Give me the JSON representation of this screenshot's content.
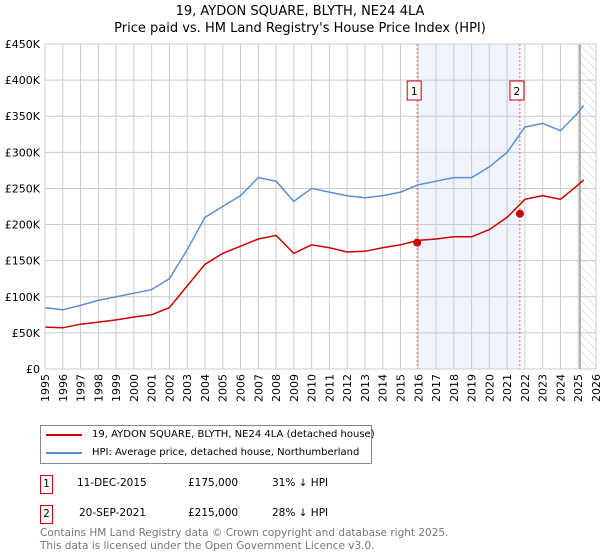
{
  "title_line1": "19, AYDON SQUARE, BLYTH, NE24 4LA",
  "title_line2": "Price paid vs. HM Land Registry's House Price Index (HPI)",
  "chart_data": {
    "type": "line",
    "ylim": [
      0,
      450000
    ],
    "xlim": [
      1995,
      2026
    ],
    "yticks": [
      {
        "v": 0,
        "l": "£0"
      },
      {
        "v": 50000,
        "l": "£50K"
      },
      {
        "v": 100000,
        "l": "£100K"
      },
      {
        "v": 150000,
        "l": "£150K"
      },
      {
        "v": 200000,
        "l": "£200K"
      },
      {
        "v": 250000,
        "l": "£250K"
      },
      {
        "v": 300000,
        "l": "£300K"
      },
      {
        "v": 350000,
        "l": "£350K"
      },
      {
        "v": 400000,
        "l": "£400K"
      },
      {
        "v": 450000,
        "l": "£450K"
      }
    ],
    "xticks": [
      "1995",
      "1996",
      "1997",
      "1998",
      "1999",
      "2000",
      "2001",
      "2002",
      "2003",
      "2004",
      "2005",
      "2006",
      "2007",
      "2008",
      "2009",
      "2010",
      "2011",
      "2012",
      "2013",
      "2014",
      "2015",
      "2016",
      "2017",
      "2018",
      "2019",
      "2020",
      "2021",
      "2022",
      "2023",
      "2024",
      "2025",
      "2026"
    ],
    "x": [
      1995,
      1996,
      1997,
      1998,
      1999,
      2000,
      2001,
      2002,
      2003,
      2004,
      2005,
      2006,
      2007,
      2008,
      2009,
      2010,
      2011,
      2012,
      2013,
      2014,
      2015,
      2016,
      2017,
      2018,
      2019,
      2020,
      2021,
      2022,
      2023,
      2024,
      2025,
      2025.3
    ],
    "series": [
      {
        "name": "19, AYDON SQUARE, BLYTH, NE24 4LA (detached house)",
        "color": "#cc0000",
        "values": [
          58000,
          57000,
          62000,
          65000,
          68000,
          72000,
          75000,
          85000,
          115000,
          145000,
          160000,
          170000,
          180000,
          185000,
          160000,
          172000,
          168000,
          162000,
          163000,
          168000,
          172000,
          178000,
          180000,
          183000,
          183000,
          193000,
          210000,
          235000,
          240000,
          235000,
          255000,
          262000
        ]
      },
      {
        "name": "HPI: Average price, detached house, Northumberland",
        "color": "#5b8fd4",
        "values": [
          85000,
          82000,
          88000,
          95000,
          100000,
          105000,
          110000,
          125000,
          165000,
          210000,
          225000,
          240000,
          265000,
          260000,
          232000,
          250000,
          245000,
          240000,
          237000,
          240000,
          245000,
          255000,
          260000,
          265000,
          265000,
          280000,
          300000,
          335000,
          340000,
          330000,
          355000,
          365000
        ]
      }
    ],
    "sales": [
      {
        "label": "1",
        "x": 2015.94,
        "price": 175000,
        "date": "11-DEC-2015",
        "price_text": "£175,000",
        "hpi": "31% ↓ HPI"
      },
      {
        "label": "2",
        "x": 2021.72,
        "price": 215000,
        "date": "20-SEP-2021",
        "price_text": "£215,000",
        "hpi": "28% ↓ HPI"
      }
    ],
    "forecast_start": 2025.1
  },
  "footer_line1": "Contains HM Land Registry data © Crown copyright and database right 2025.",
  "footer_line2": "This data is licensed under the Open Government Licence v3.0."
}
